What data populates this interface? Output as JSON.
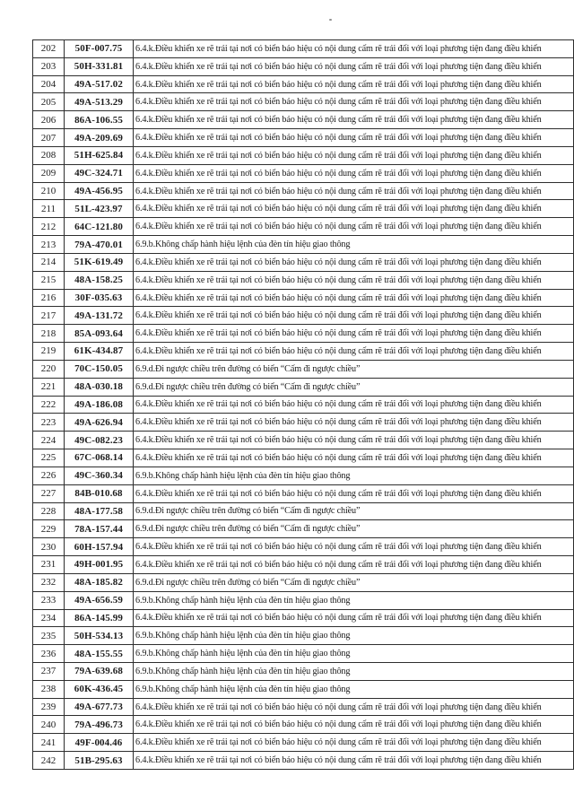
{
  "document": {
    "kind": "scanned traffic-violation list page",
    "scan_artifact_dot": "·",
    "border_color": "#2e2e2e",
    "text_color": "#1c1c1c"
  },
  "table": {
    "columns": [
      "no",
      "plate",
      "violation"
    ],
    "rows": [
      {
        "no": "202",
        "plate": "50F-007.75",
        "violation": "6.4.k.Điều khiển xe rẽ trái tại nơi có biển báo hiệu có nội dung cấm rẽ trái đối với loại phương tiện đang điều khiển"
      },
      {
        "no": "203",
        "plate": "50H-331.81",
        "violation": "6.4.k.Điều khiển xe rẽ trái tại nơi có biển báo hiệu có nội dung cấm rẽ trái đối với loại phương tiện đang điều khiển"
      },
      {
        "no": "204",
        "plate": "49A-517.02",
        "violation": "6.4.k.Điều khiển xe rẽ trái tại nơi có biển báo hiệu có nội dung cấm rẽ trái đối với loại phương tiện đang điều khiển"
      },
      {
        "no": "205",
        "plate": "49A-513.29",
        "violation": "6.4.k.Điều khiển xe rẽ trái tại nơi có biển báo hiệu có nội dung cấm rẽ trái đối với loại phương tiện đang điều khiển"
      },
      {
        "no": "206",
        "plate": "86A-106.55",
        "violation": "6.4.k.Điều khiển xe rẽ trái tại nơi có biển báo hiệu có nội dung cấm rẽ trái đối với loại phương tiện đang điều khiển"
      },
      {
        "no": "207",
        "plate": "49A-209.69",
        "violation": "6.4.k.Điều khiển xe rẽ trái tại nơi có biển báo hiệu có nội dung cấm rẽ trái đối với loại phương tiện đang điều khiển"
      },
      {
        "no": "208",
        "plate": "51H-625.84",
        "violation": "6.4.k.Điều khiển xe rẽ trái tại nơi có biển báo hiệu có nội dung cấm rẽ trái đối với loại phương tiện đang điều khiển"
      },
      {
        "no": "209",
        "plate": "49C-324.71",
        "violation": "6.4.k.Điều khiển xe rẽ trái tại nơi có biển báo hiệu có nội dung cấm rẽ trái đối với loại phương tiện đang điều khiển"
      },
      {
        "no": "210",
        "plate": "49A-456.95",
        "violation": "6.4.k.Điều khiển xe rẽ trái tại nơi có biển báo hiệu có nội dung cấm rẽ trái đối với loại phương tiện đang điều khiển"
      },
      {
        "no": "211",
        "plate": "51L-423.97",
        "violation": "6.4.k.Điều khiển xe rẽ trái tại nơi có biển báo hiệu có nội dung cấm rẽ trái đối với loại phương tiện đang điều khiển"
      },
      {
        "no": "212",
        "plate": "64C-121.80",
        "violation": "6.4.k.Điều khiển xe rẽ trái tại nơi có biển báo hiệu có nội dung cấm rẽ trái đối với loại phương tiện đang điều khiển"
      },
      {
        "no": "213",
        "plate": "79A-470.01",
        "violation": "6.9.b.Không chấp hành hiệu lệnh của đèn tín hiệu giao thông"
      },
      {
        "no": "214",
        "plate": "51K-619.49",
        "violation": "6.4.k.Điều khiển xe rẽ trái tại nơi có biển báo hiệu có nội dung cấm rẽ trái đối với loại phương tiện đang điều khiển"
      },
      {
        "no": "215",
        "plate": "48A-158.25",
        "violation": "6.4.k.Điều khiển xe rẽ trái tại nơi có biển báo hiệu có nội dung cấm rẽ trái đối với loại phương tiện đang điều khiển"
      },
      {
        "no": "216",
        "plate": "30F-035.63",
        "violation": "6.4.k.Điều khiển xe rẽ trái tại nơi có biển báo hiệu có nội dung cấm rẽ trái đối với loại phương tiện đang điều khiển"
      },
      {
        "no": "217",
        "plate": "49A-131.72",
        "violation": "6.4.k.Điều khiển xe rẽ trái tại nơi có biển báo hiệu có nội dung cấm rẽ trái đối với loại phương tiện đang điều khiển"
      },
      {
        "no": "218",
        "plate": "85A-093.64",
        "violation": "6.4.k.Điều khiển xe rẽ trái tại nơi có biển báo hiệu có nội dung cấm rẽ trái đối với loại phương tiện đang điều khiển"
      },
      {
        "no": "219",
        "plate": "61K-434.87",
        "violation": "6.4.k.Điều khiển xe rẽ trái tại nơi có biển báo hiệu có nội dung cấm rẽ trái đối với loại phương tiện đang điều khiển"
      },
      {
        "no": "220",
        "plate": "70C-150.05",
        "violation": "6.9.d.Đi ngược chiều trên đường có biển “Cấm đi ngược chiều”"
      },
      {
        "no": "221",
        "plate": "48A-030.18",
        "violation": "6.9.d.Đi ngược chiều trên đường có biển “Cấm đi ngược chiều”"
      },
      {
        "no": "222",
        "plate": "49A-186.08",
        "violation": "6.4.k.Điều khiển xe rẽ trái tại nơi có biển báo hiệu có nội dung cấm rẽ trái đối với loại phương tiện đang điều khiển"
      },
      {
        "no": "223",
        "plate": "49A-626.94",
        "violation": "6.4.k.Điều khiển xe rẽ trái tại nơi có biển báo hiệu có nội dung cấm rẽ trái đối với loại phương tiện đang điều khiển"
      },
      {
        "no": "224",
        "plate": "49C-082.23",
        "violation": "6.4.k.Điều khiển xe rẽ trái tại nơi có biển báo hiệu có nội dung cấm rẽ trái đối với loại phương tiện đang điều khiển"
      },
      {
        "no": "225",
        "plate": "67C-068.14",
        "violation": "6.4.k.Điều khiển xe rẽ trái tại nơi có biển báo hiệu có nội dung cấm rẽ trái đối với loại phương tiện đang điều khiển"
      },
      {
        "no": "226",
        "plate": "49C-360.34",
        "violation": "6.9.b.Không chấp hành hiệu lệnh của đèn tín hiệu giao thông"
      },
      {
        "no": "227",
        "plate": "84B-010.68",
        "violation": "6.4.k.Điều khiển xe rẽ trái tại nơi có biển báo hiệu có nội dung cấm rẽ trái đối với loại phương tiện đang điều khiển"
      },
      {
        "no": "228",
        "plate": "48A-177.58",
        "violation": "6.9.d.Đi ngược chiều trên đường có biển “Cấm đi ngược chiều”"
      },
      {
        "no": "229",
        "plate": "78A-157.44",
        "violation": "6.9.d.Đi ngược chiều trên đường có biển “Cấm đi ngược chiều”"
      },
      {
        "no": "230",
        "plate": "60H-157.94",
        "violation": "6.4.k.Điều khiển xe rẽ trái tại nơi có biển báo hiệu có nội dung cấm rẽ trái đối với loại phương tiện đang điều khiển"
      },
      {
        "no": "231",
        "plate": "49H-001.95",
        "violation": "6.4.k.Điều khiển xe rẽ trái tại nơi có biển báo hiệu có nội dung cấm rẽ trái đối với loại phương tiện đang điều khiển"
      },
      {
        "no": "232",
        "plate": "48A-185.82",
        "violation": "6.9.d.Đi ngược chiều trên đường có biển “Cấm đi ngược chiều”"
      },
      {
        "no": "233",
        "plate": "49A-656.59",
        "violation": "6.9.b.Không chấp hành hiệu lệnh của đèn tín hiệu giao thông"
      },
      {
        "no": "234",
        "plate": "86A-145.99",
        "violation": "6.4.k.Điều khiển xe rẽ trái tại nơi có biển báo hiệu có nội dung cấm rẽ trái đối với loại phương tiện đang điều khiển"
      },
      {
        "no": "235",
        "plate": "50H-534.13",
        "violation": "6.9.b.Không chấp hành hiệu lệnh của đèn tín hiệu giao thông"
      },
      {
        "no": "236",
        "plate": "48A-155.55",
        "violation": "6.9.b.Không chấp hành hiệu lệnh của đèn tín hiệu giao thông"
      },
      {
        "no": "237",
        "plate": "79A-639.68",
        "violation": "6.9.b.Không chấp hành hiệu lệnh của đèn tín hiệu giao thông"
      },
      {
        "no": "238",
        "plate": "60K-436.45",
        "violation": "6.9.b.Không chấp hành hiệu lệnh của đèn tín hiệu giao thông"
      },
      {
        "no": "239",
        "plate": "49A-677.73",
        "violation": "6.4.k.Điều khiển xe rẽ trái tại nơi có biển báo hiệu có nội dung cấm rẽ trái đối với loại phương tiện đang điều khiển"
      },
      {
        "no": "240",
        "plate": "79A-496.73",
        "violation": "6.4.k.Điều khiển xe rẽ trái tại nơi có biển báo hiệu có nội dung cấm rẽ trái đối với loại phương tiện đang điều khiển"
      },
      {
        "no": "241",
        "plate": "49F-004.46",
        "violation": "6.4.k.Điều khiển xe rẽ trái tại nơi có biển báo hiệu có nội dung cấm rẽ trái đối với loại phương tiện đang điều khiển"
      },
      {
        "no": "242",
        "plate": "51B-295.63",
        "violation": "6.4.k.Điều khiển xe rẽ trái tại nơi có biển báo hiệu có nội dung cấm rẽ trái đối với loại phương tiện đang điều khiển"
      }
    ]
  }
}
